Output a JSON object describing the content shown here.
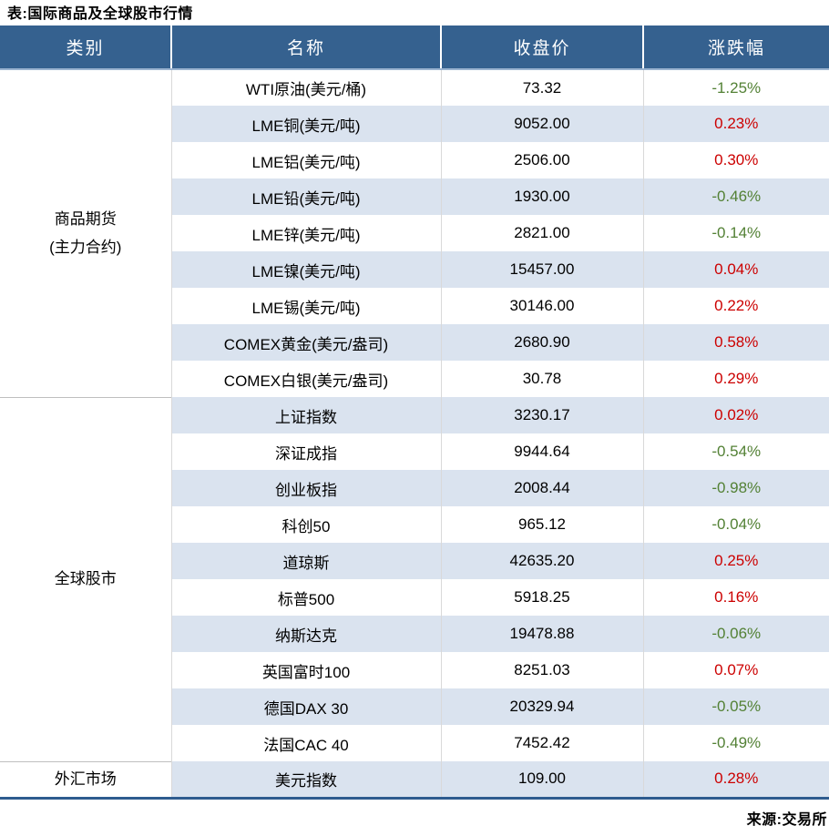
{
  "title": "表:国际商品及全球股市行情",
  "source": "来源:交易所",
  "colors": {
    "header_bg": "#35618F",
    "header_underline": "#9AB3D0",
    "row_stripe": "#DAE3EF",
    "change_up_red": "#CC0000",
    "change_down_green": "#538135",
    "grid_line": "#D9D9D9",
    "section_line": "#BFBFBF",
    "bottom_rule": "#2E5C8F"
  },
  "table": {
    "headers": [
      "类别",
      "名称",
      "收盘价",
      "涨跌幅"
    ],
    "sections": [
      {
        "category_lines": [
          "商品期货",
          "(主力合约)"
        ],
        "rows": [
          {
            "name": "WTI原油(美元/桶)",
            "close": "73.32",
            "change": "-1.25%",
            "direction": "down"
          },
          {
            "name": "LME铜(美元/吨)",
            "close": "9052.00",
            "change": "0.23%",
            "direction": "up"
          },
          {
            "name": "LME铝(美元/吨)",
            "close": "2506.00",
            "change": "0.30%",
            "direction": "up"
          },
          {
            "name": "LME铅(美元/吨)",
            "close": "1930.00",
            "change": "-0.46%",
            "direction": "down"
          },
          {
            "name": "LME锌(美元/吨)",
            "close": "2821.00",
            "change": "-0.14%",
            "direction": "down"
          },
          {
            "name": "LME镍(美元/吨)",
            "close": "15457.00",
            "change": "0.04%",
            "direction": "up"
          },
          {
            "name": "LME锡(美元/吨)",
            "close": "30146.00",
            "change": "0.22%",
            "direction": "up"
          },
          {
            "name": "COMEX黄金(美元/盎司)",
            "close": "2680.90",
            "change": "0.58%",
            "direction": "up"
          },
          {
            "name": "COMEX白银(美元/盎司)",
            "close": "30.78",
            "change": "0.29%",
            "direction": "up"
          }
        ]
      },
      {
        "category_lines": [
          "全球股市"
        ],
        "rows": [
          {
            "name": "上证指数",
            "close": "3230.17",
            "change": "0.02%",
            "direction": "up"
          },
          {
            "name": "深证成指",
            "close": "9944.64",
            "change": "-0.54%",
            "direction": "down"
          },
          {
            "name": "创业板指",
            "close": "2008.44",
            "change": "-0.98%",
            "direction": "down"
          },
          {
            "name": "科创50",
            "close": "965.12",
            "change": "-0.04%",
            "direction": "down"
          },
          {
            "name": "道琼斯",
            "close": "42635.20",
            "change": "0.25%",
            "direction": "up"
          },
          {
            "name": "标普500",
            "close": "5918.25",
            "change": "0.16%",
            "direction": "up"
          },
          {
            "name": "纳斯达克",
            "close": "19478.88",
            "change": "-0.06%",
            "direction": "down"
          },
          {
            "name": "英国富时100",
            "close": "8251.03",
            "change": "0.07%",
            "direction": "up"
          },
          {
            "name": "德国DAX 30",
            "close": "20329.94",
            "change": "-0.05%",
            "direction": "down"
          },
          {
            "name": "法国CAC 40",
            "close": "7452.42",
            "change": "-0.49%",
            "direction": "down"
          }
        ]
      },
      {
        "category_lines": [
          "外汇市场"
        ],
        "rows": [
          {
            "name": "美元指数",
            "close": "109.00",
            "change": "0.28%",
            "direction": "up"
          }
        ]
      }
    ]
  }
}
